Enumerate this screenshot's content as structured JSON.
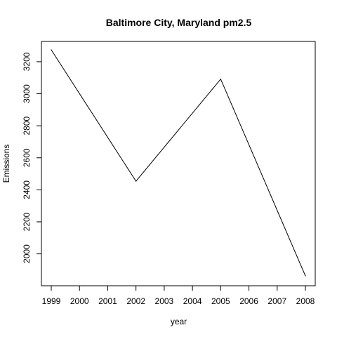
{
  "chart_data": {
    "type": "line",
    "title": "Baltimore City, Maryland pm2.5",
    "xlabel": "year",
    "ylabel": "Emissions",
    "x": [
      1999,
      2002,
      2005,
      2008
    ],
    "series": [
      {
        "values": [
          3274.18,
          2453.92,
          3091.35,
          1862.28
        ]
      }
    ],
    "xticks": [
      "1999",
      "2000",
      "2001",
      "2002",
      "2003",
      "2004",
      "2005",
      "2006",
      "2007",
      "2008"
    ],
    "yticks": [
      "2000",
      "2200",
      "2400",
      "2600",
      "2800",
      "3000",
      "3200"
    ],
    "xlim": [
      1999,
      2008
    ],
    "ylim": [
      1862.28,
      3274.18
    ],
    "grid": false,
    "line_color": "#000000"
  }
}
